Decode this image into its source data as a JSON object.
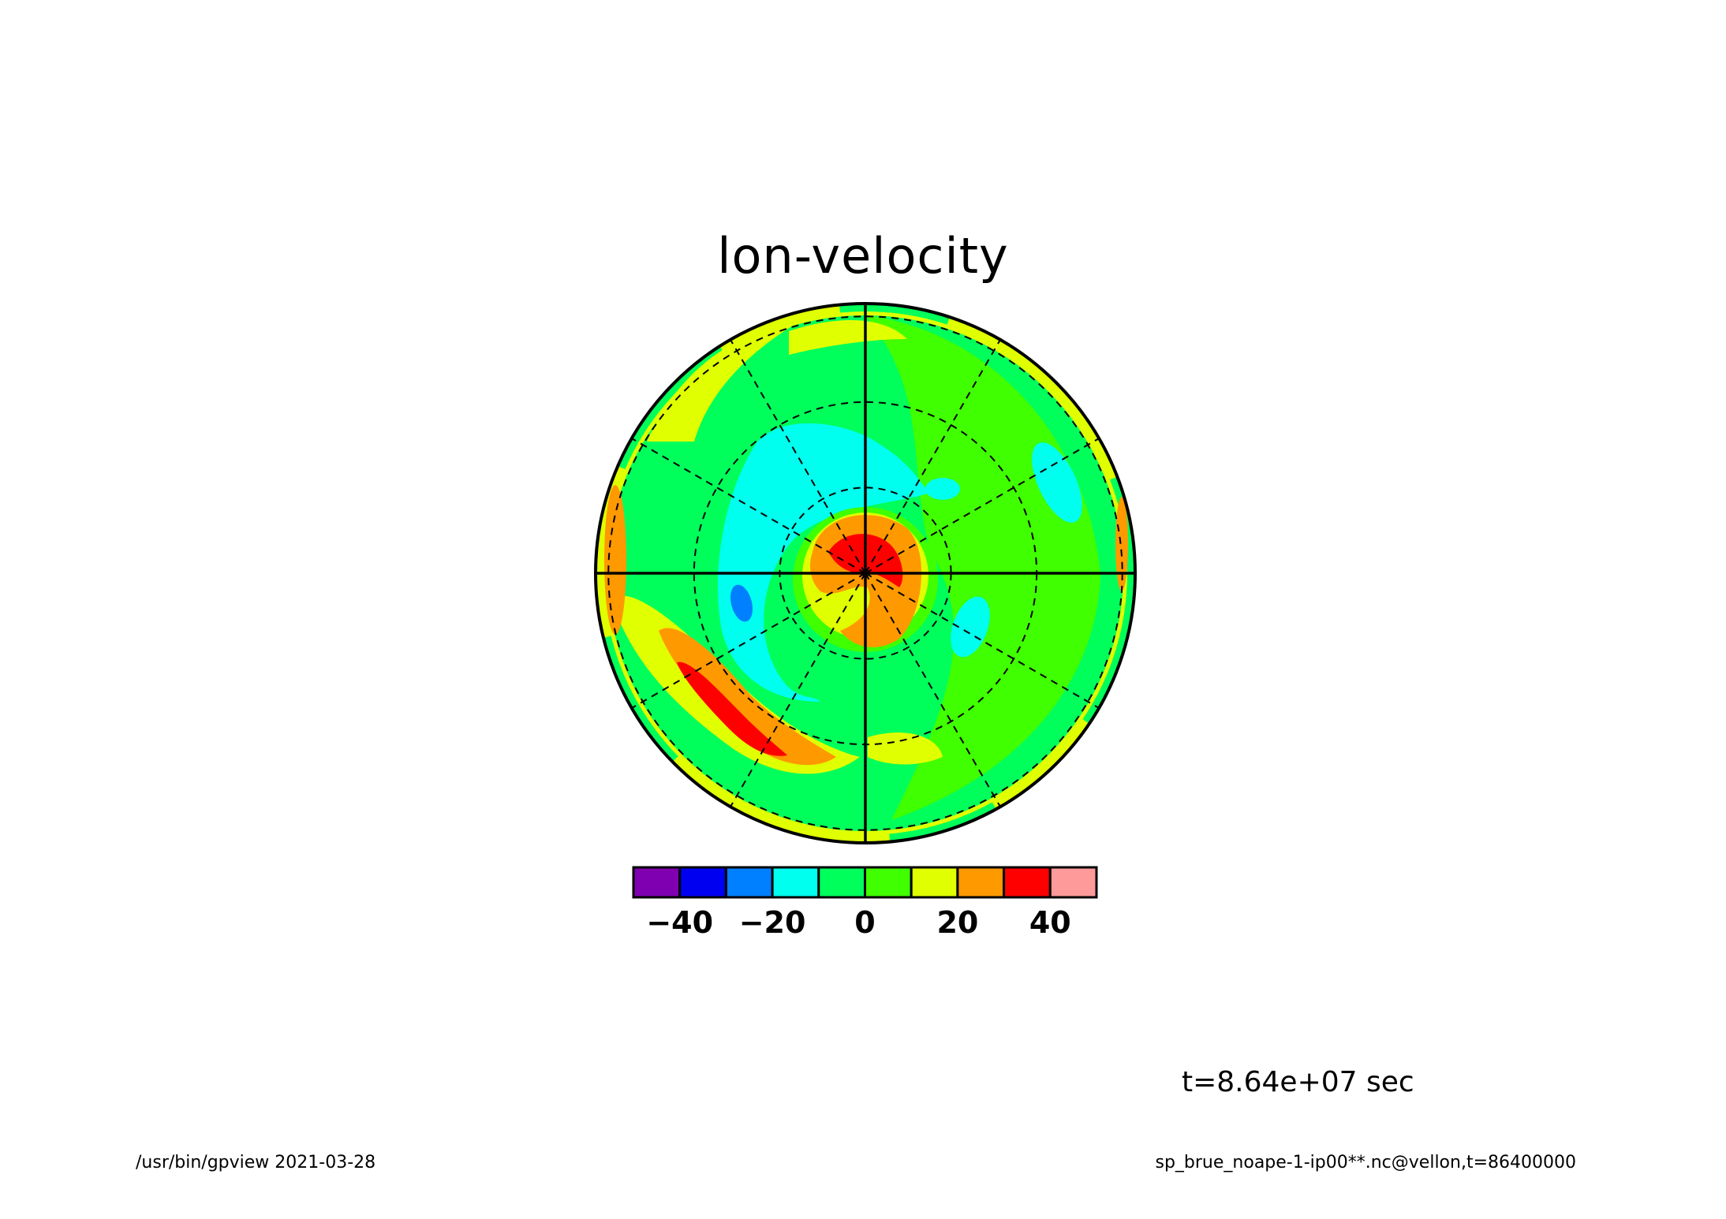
{
  "chart_data": {
    "type": "heatmap",
    "projection": "polar-stereographic",
    "title": "lon-velocity",
    "colorbar": {
      "levels": [
        -50,
        -40,
        -30,
        -20,
        -10,
        0,
        10,
        20,
        30,
        40,
        50
      ],
      "colors": [
        "#7f00b0",
        "#0000f0",
        "#0080ff",
        "#00ffee",
        "#00ff5a",
        "#40ff00",
        "#e0ff00",
        "#ff9900",
        "#ff0000",
        "#ff9a9a"
      ],
      "tick_values": [
        -40,
        -20,
        0,
        20,
        40
      ],
      "tick_labels": [
        "-40",
        "-20",
        "0",
        "20",
        "40"
      ]
    },
    "grid": {
      "meridians_deg": [
        0,
        30,
        60,
        90,
        120,
        150,
        180,
        210,
        240,
        270,
        300,
        330
      ],
      "latitude_circles": 3
    },
    "field_features": [
      {
        "desc": "central maximum",
        "value": 35
      },
      {
        "desc": "lower-left band maximum",
        "value": 35
      },
      {
        "desc": "upper-left minimum",
        "value": -15
      },
      {
        "desc": "left isolated minimum",
        "value": -25
      }
    ]
  },
  "annotations": {
    "time": "t=8.64e+07 sec",
    "footer_left": "/usr/bin/gpview   2021-03-28",
    "footer_right": "sp_brue_noape-1-ip00**.nc@vellon,t=86400000"
  }
}
